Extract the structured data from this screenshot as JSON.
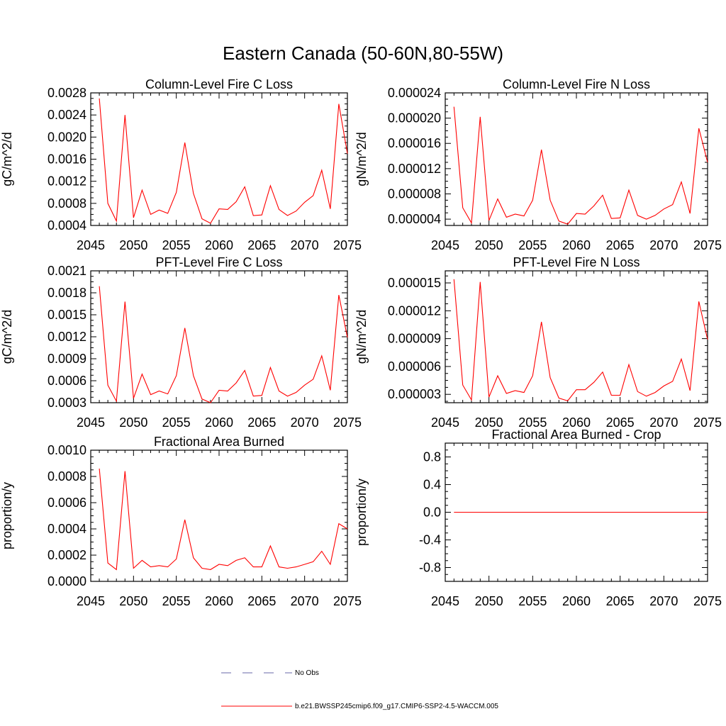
{
  "figure": {
    "title": "Eastern Canada (50-60N,80-55W)"
  },
  "legend": {
    "entries": [
      {
        "label": "No Obs",
        "color": "#6a6aa8",
        "style": "dashed"
      },
      {
        "label": "b.e21.BWSSP245cmip6.f09_g17.CMIP6-SSP2-4.5-WACCM.005",
        "color": "#ff0000",
        "style": "solid"
      }
    ]
  },
  "chart_data": [
    {
      "type": "line",
      "title": "Column-Level Fire C Loss",
      "ylabel": "gC/m^2/d",
      "xlim": [
        2045,
        2075
      ],
      "ylim": [
        0.0004,
        0.0028
      ],
      "xticks": [
        "2045",
        "2050",
        "2055",
        "2060",
        "2065",
        "2070",
        "2075"
      ],
      "yticks": [
        "0.0004",
        "0.0008",
        "0.0012",
        "0.0016",
        "0.0020",
        "0.0024",
        "0.0028"
      ],
      "x": [
        2046,
        2047,
        2048,
        2049,
        2050,
        2051,
        2052,
        2053,
        2054,
        2055,
        2056,
        2057,
        2058,
        2059,
        2060,
        2061,
        2062,
        2063,
        2064,
        2065,
        2066,
        2067,
        2068,
        2069,
        2070,
        2071,
        2072,
        2073,
        2074,
        2075
      ],
      "series": [
        {
          "color": "#ff0000",
          "values": [
            0.0027,
            0.0008,
            0.00048,
            0.0024,
            0.00054,
            0.00104,
            0.0006,
            0.00068,
            0.00062,
            0.001,
            0.0019,
            0.00098,
            0.00052,
            0.00044,
            0.0007,
            0.00069,
            0.00083,
            0.0011,
            0.00058,
            0.00059,
            0.00112,
            0.00069,
            0.00058,
            0.00066,
            0.00082,
            0.00094,
            0.0014,
            0.0007,
            0.0026,
            0.0017
          ]
        }
      ]
    },
    {
      "type": "line",
      "title": "Column-Level Fire N Loss",
      "ylabel": "gN/m^2/d",
      "xlim": [
        2045,
        2075
      ],
      "ylim": [
        3e-06,
        2.4e-05
      ],
      "xticks": [
        "2045",
        "2050",
        "2055",
        "2060",
        "2065",
        "2070",
        "2075"
      ],
      "yticks": [
        "0.000004",
        "0.000008",
        "0.000012",
        "0.000016",
        "0.000020",
        "0.000024"
      ],
      "x": [
        2046,
        2047,
        2048,
        2049,
        2050,
        2051,
        2052,
        2053,
        2054,
        2055,
        2056,
        2057,
        2058,
        2059,
        2060,
        2061,
        2062,
        2063,
        2064,
        2065,
        2066,
        2067,
        2068,
        2069,
        2070,
        2071,
        2072,
        2073,
        2074,
        2075
      ],
      "series": [
        {
          "color": "#ff0000",
          "values": [
            2.18e-05,
            5.8e-06,
            3.4e-06,
            2.02e-05,
            3.8e-06,
            7.2e-06,
            4.3e-06,
            4.8e-06,
            4.5e-06,
            7e-06,
            1.5e-05,
            7e-06,
            3.7e-06,
            3.2e-06,
            4.9e-06,
            4.8e-06,
            6.1e-06,
            7.8e-06,
            4.1e-06,
            4.2e-06,
            8.6e-06,
            4.6e-06,
            4e-06,
            4.6e-06,
            5.6e-06,
            6.3e-06,
            9.9e-06,
            4.9e-06,
            1.84e-05,
            1.3e-05
          ]
        }
      ]
    },
    {
      "type": "line",
      "title": "PFT-Level Fire C Loss",
      "ylabel": "gC/m^2/d",
      "xlim": [
        2045,
        2075
      ],
      "ylim": [
        0.0003,
        0.0021
      ],
      "xticks": [
        "2045",
        "2050",
        "2055",
        "2060",
        "2065",
        "2070",
        "2075"
      ],
      "yticks": [
        "0.0003",
        "0.0006",
        "0.0009",
        "0.0012",
        "0.0015",
        "0.0018",
        "0.0021"
      ],
      "x": [
        2046,
        2047,
        2048,
        2049,
        2050,
        2051,
        2052,
        2053,
        2054,
        2055,
        2056,
        2057,
        2058,
        2059,
        2060,
        2061,
        2062,
        2063,
        2064,
        2065,
        2066,
        2067,
        2068,
        2069,
        2070,
        2071,
        2072,
        2073,
        2074,
        2075
      ],
      "series": [
        {
          "color": "#ff0000",
          "values": [
            0.00189,
            0.00054,
            0.00032,
            0.00168,
            0.00036,
            0.00069,
            0.00041,
            0.00046,
            0.00042,
            0.00067,
            0.00132,
            0.00067,
            0.00035,
            0.0003,
            0.00047,
            0.00046,
            0.00057,
            0.00074,
            0.00039,
            0.0004,
            0.00078,
            0.00046,
            0.00039,
            0.00044,
            0.00054,
            0.00062,
            0.00094,
            0.00047,
            0.00177,
            0.00119
          ]
        }
      ]
    },
    {
      "type": "line",
      "title": "PFT-Level Fire N Loss",
      "ylabel": "gN/m^2/d",
      "xlim": [
        2045,
        2075
      ],
      "ylim": [
        2.1e-06,
        1.63e-05
      ],
      "xticks": [
        "2045",
        "2050",
        "2055",
        "2060",
        "2065",
        "2070",
        "2075"
      ],
      "yticks": [
        "0.000003",
        "0.000006",
        "0.000009",
        "0.000012",
        "0.000015"
      ],
      "x": [
        2046,
        2047,
        2048,
        2049,
        2050,
        2051,
        2052,
        2053,
        2054,
        2055,
        2056,
        2057,
        2058,
        2059,
        2060,
        2061,
        2062,
        2063,
        2064,
        2065,
        2066,
        2067,
        2068,
        2069,
        2070,
        2071,
        2072,
        2073,
        2074,
        2075
      ],
      "series": [
        {
          "color": "#ff0000",
          "values": [
            1.54e-05,
            4e-06,
            2.4e-06,
            1.51e-05,
            2.7e-06,
            5e-06,
            3.1e-06,
            3.4e-06,
            3.2e-06,
            5e-06,
            1.08e-05,
            4.8e-06,
            2.6e-06,
            2.3e-06,
            3.5e-06,
            3.5e-06,
            4.3e-06,
            5.4e-06,
            2.9e-06,
            2.9e-06,
            6.2e-06,
            3.3e-06,
            2.8e-06,
            3.2e-06,
            3.9e-06,
            4.4e-06,
            6.8e-06,
            3.4e-06,
            1.3e-05,
            8.9e-06
          ]
        }
      ]
    },
    {
      "type": "line",
      "title": "Fractional Area Burned",
      "ylabel": "proportion/y",
      "xlim": [
        2045,
        2075
      ],
      "ylim": [
        0.0,
        0.001
      ],
      "xticks": [
        "2045",
        "2050",
        "2055",
        "2060",
        "2065",
        "2070",
        "2075"
      ],
      "yticks": [
        "0.0000",
        "0.0002",
        "0.0004",
        "0.0006",
        "0.0008",
        "0.0010"
      ],
      "x": [
        2046,
        2047,
        2048,
        2049,
        2050,
        2051,
        2052,
        2053,
        2054,
        2055,
        2056,
        2057,
        2058,
        2059,
        2060,
        2061,
        2062,
        2063,
        2064,
        2065,
        2066,
        2067,
        2068,
        2069,
        2070,
        2071,
        2072,
        2073,
        2074,
        2075
      ],
      "series": [
        {
          "color": "#ff0000",
          "values": [
            0.00086,
            0.00014,
            9e-05,
            0.00084,
            0.0001,
            0.00016,
            0.00011,
            0.00012,
            0.00011,
            0.00017,
            0.00047,
            0.00018,
            0.0001,
            9e-05,
            0.00013,
            0.00012,
            0.00016,
            0.00018,
            0.00011,
            0.00011,
            0.00027,
            0.00011,
            0.0001,
            0.00011,
            0.00013,
            0.00015,
            0.00023,
            0.00013,
            0.00044,
            0.0004
          ]
        }
      ]
    },
    {
      "type": "line",
      "title": "Fractional Area Burned - Crop",
      "ylabel": "proportion/y",
      "xlim": [
        2045,
        2075
      ],
      "ylim": [
        -1.0,
        1.0
      ],
      "xticks": [
        "2045",
        "2050",
        "2055",
        "2060",
        "2065",
        "2070",
        "2075"
      ],
      "yticks": [
        "-0.8",
        "-0.4",
        "0.0",
        "0.4",
        "0.8"
      ],
      "x": [
        2046,
        2047,
        2048,
        2049,
        2050,
        2051,
        2052,
        2053,
        2054,
        2055,
        2056,
        2057,
        2058,
        2059,
        2060,
        2061,
        2062,
        2063,
        2064,
        2065,
        2066,
        2067,
        2068,
        2069,
        2070,
        2071,
        2072,
        2073,
        2074,
        2075
      ],
      "series": [
        {
          "color": "#ff0000",
          "values": [
            0,
            0,
            0,
            0,
            0,
            0,
            0,
            0,
            0,
            0,
            0,
            0,
            0,
            0,
            0,
            0,
            0,
            0,
            0,
            0,
            0,
            0,
            0,
            0,
            0,
            0,
            0,
            0,
            0,
            0
          ]
        }
      ]
    }
  ]
}
